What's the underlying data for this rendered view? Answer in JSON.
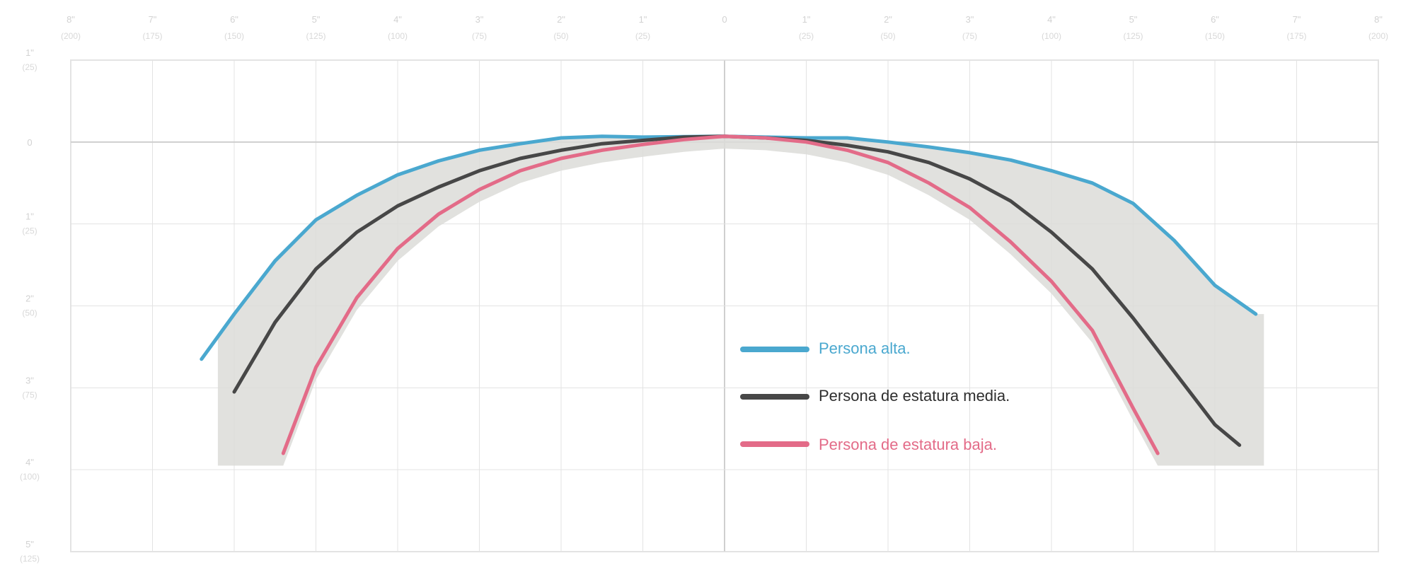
{
  "chart_data": {
    "type": "line",
    "title": "",
    "xlabel": "",
    "ylabel": "",
    "xlim": [
      -8,
      8
    ],
    "ylim": [
      -5,
      1
    ],
    "x_ticks": [
      {
        "value": -8,
        "label": "8\"",
        "sub": "(200)"
      },
      {
        "value": -7,
        "label": "7\"",
        "sub": "(175)"
      },
      {
        "value": -6,
        "label": "6\"",
        "sub": "(150)"
      },
      {
        "value": -5,
        "label": "5\"",
        "sub": "(125)"
      },
      {
        "value": -4,
        "label": "4\"",
        "sub": "(100)"
      },
      {
        "value": -3,
        "label": "3\"",
        "sub": "(75)"
      },
      {
        "value": -2,
        "label": "2\"",
        "sub": "(50)"
      },
      {
        "value": -1,
        "label": "1\"",
        "sub": "(25)"
      },
      {
        "value": 0,
        "label": "0",
        "sub": ""
      },
      {
        "value": 1,
        "label": "1\"",
        "sub": "(25)"
      },
      {
        "value": 2,
        "label": "2\"",
        "sub": "(50)"
      },
      {
        "value": 3,
        "label": "3\"",
        "sub": "(75)"
      },
      {
        "value": 4,
        "label": "4\"",
        "sub": "(100)"
      },
      {
        "value": 5,
        "label": "5\"",
        "sub": "(125)"
      },
      {
        "value": 6,
        "label": "6\"",
        "sub": "(150)"
      },
      {
        "value": 7,
        "label": "7\"",
        "sub": "(175)"
      },
      {
        "value": 8,
        "label": "8\"",
        "sub": "(200)"
      }
    ],
    "y_ticks": [
      {
        "value": 1,
        "label": "1\"",
        "sub": "(25)"
      },
      {
        "value": 0,
        "label": "0",
        "sub": ""
      },
      {
        "value": -1,
        "label": "1\"",
        "sub": "(25)"
      },
      {
        "value": -2,
        "label": "2\"",
        "sub": "(50)"
      },
      {
        "value": -3,
        "label": "3\"",
        "sub": "(75)"
      },
      {
        "value": -4,
        "label": "4\"",
        "sub": "(100)"
      },
      {
        "value": -5,
        "label": "5\"",
        "sub": "(125)"
      }
    ],
    "grid": true,
    "legend": "center-right",
    "series": [
      {
        "name": "Persona alta.",
        "color": "#4aa8cf",
        "x": [
          -6.4,
          -6.0,
          -5.5,
          -5.0,
          -4.5,
          -4.0,
          -3.5,
          -3.0,
          -2.5,
          -2.0,
          -1.5,
          -1.0,
          0.0,
          1.0,
          1.5,
          2.0,
          2.5,
          3.0,
          3.5,
          4.0,
          4.5,
          5.0,
          5.5,
          6.0,
          6.5
        ],
        "y": [
          -2.65,
          -2.1,
          -1.45,
          -0.95,
          -0.65,
          -0.4,
          -0.23,
          -0.1,
          -0.02,
          0.05,
          0.07,
          0.06,
          0.07,
          0.05,
          0.05,
          0.0,
          -0.06,
          -0.13,
          -0.22,
          -0.35,
          -0.5,
          -0.75,
          -1.2,
          -1.75,
          -2.1
        ]
      },
      {
        "name": "Persona de estatura media.",
        "color": "#474747",
        "x": [
          -6.0,
          -5.5,
          -5.0,
          -4.5,
          -4.0,
          -3.5,
          -3.0,
          -2.5,
          -2.0,
          -1.5,
          -1.0,
          -0.5,
          0.0,
          0.5,
          1.0,
          1.5,
          2.0,
          2.5,
          3.0,
          3.5,
          4.0,
          4.5,
          5.0,
          5.5,
          6.0,
          6.3
        ],
        "y": [
          -3.05,
          -2.2,
          -1.55,
          -1.1,
          -0.78,
          -0.55,
          -0.35,
          -0.2,
          -0.1,
          -0.02,
          0.02,
          0.06,
          0.07,
          0.05,
          0.02,
          -0.04,
          -0.12,
          -0.25,
          -0.45,
          -0.72,
          -1.1,
          -1.55,
          -2.15,
          -2.8,
          -3.45,
          -3.7
        ]
      },
      {
        "name": "Persona de estatura baja.",
        "color": "#e36b88",
        "x": [
          -5.4,
          -5.0,
          -4.5,
          -4.0,
          -3.5,
          -3.0,
          -2.5,
          -2.0,
          -1.5,
          -1.0,
          -0.5,
          0.0,
          0.5,
          1.0,
          1.5,
          2.0,
          2.5,
          3.0,
          3.5,
          4.0,
          4.5,
          5.0,
          5.3
        ],
        "y": [
          -3.8,
          -2.75,
          -1.9,
          -1.3,
          -0.88,
          -0.58,
          -0.35,
          -0.2,
          -0.1,
          -0.03,
          0.03,
          0.07,
          0.05,
          0.0,
          -0.1,
          -0.25,
          -0.5,
          -0.8,
          -1.22,
          -1.7,
          -2.3,
          -3.25,
          -3.8
        ]
      }
    ]
  },
  "background_band": {
    "color": "#dcdcd8"
  },
  "colors": {
    "grid": "#e3e3e3",
    "axis": "#cfcfcf",
    "tick": "#cfcfcf"
  }
}
